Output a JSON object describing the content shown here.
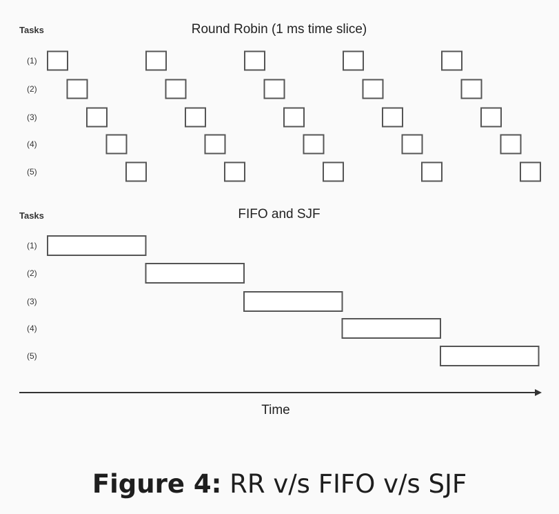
{
  "round_robin": {
    "title": "Round Robin (1 ms time slice)",
    "tasks_heading": "Tasks",
    "tasks": [
      "(1)",
      "(2)",
      "(3)",
      "(4)",
      "(5)"
    ],
    "cycles": 5
  },
  "fifo_sjf": {
    "title": "FIFO and SJF",
    "tasks_heading": "Tasks",
    "tasks": [
      "(1)",
      "(2)",
      "(3)",
      "(4)",
      "(5)"
    ]
  },
  "time_axis": {
    "label": "Time"
  },
  "caption": {
    "label": "Figure 4:",
    "text": " RR v/s FIFO v/s SJF"
  },
  "colors": {
    "box_stroke": "#555555",
    "box_fill": "#ffffff",
    "background": "#fafafa"
  }
}
